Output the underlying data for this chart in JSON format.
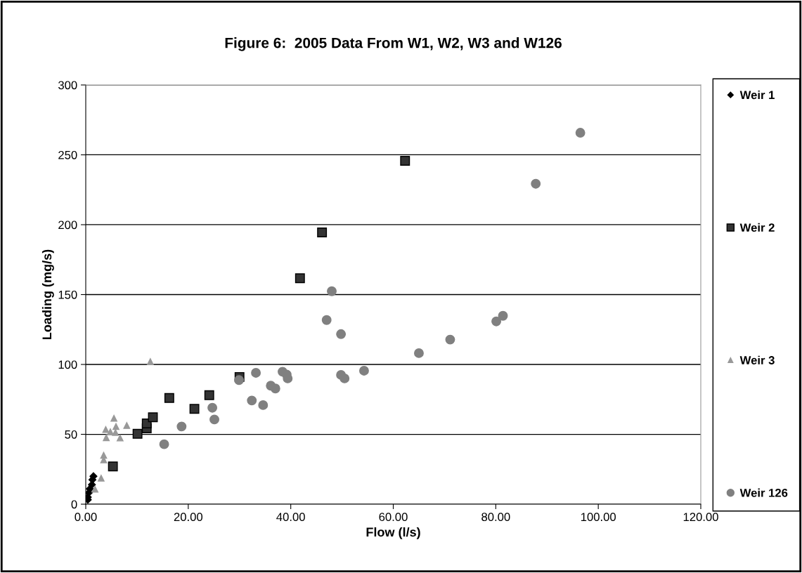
{
  "chart_data": {
    "type": "scatter",
    "title": "Figure 6:  2005 Data From W1, W2, W3 and W126",
    "xlabel": "Flow (l/s)",
    "ylabel": "Loading (mg/s)",
    "xlim": [
      0,
      120
    ],
    "ylim": [
      0,
      300
    ],
    "xticks": [
      {
        "value": 0,
        "label": "0.00"
      },
      {
        "value": 20,
        "label": "20.00"
      },
      {
        "value": 40,
        "label": "40.00"
      },
      {
        "value": 60,
        "label": "60.00"
      },
      {
        "value": 80,
        "label": "80.00"
      },
      {
        "value": 100,
        "label": "100.00"
      },
      {
        "value": 120,
        "label": "120.00"
      }
    ],
    "yticks": [
      0,
      50,
      100,
      150,
      200,
      250,
      300
    ],
    "grid": "y",
    "legend": "right",
    "series": [
      {
        "name": "Weir 1",
        "color": "#000000",
        "marker": "diamond",
        "x": [
          0.4,
          0.4,
          0.6,
          0.8,
          1.2,
          1.3,
          1.5
        ],
        "values": [
          3.2,
          5,
          8.2,
          11,
          14,
          17.5,
          20
        ]
      },
      {
        "name": "Weir 2",
        "color": "#333333",
        "marker": "square",
        "x": [
          5.3,
          10.1,
          11.9,
          11.9,
          13.1,
          16.3,
          21.2,
          24.1,
          30.0,
          41.8,
          46.1,
          62.3
        ],
        "values": [
          27,
          50.4,
          54.3,
          57.8,
          62.2,
          76,
          68.2,
          78,
          91,
          161.7,
          194.5,
          245.7
        ]
      },
      {
        "name": "Weir 3",
        "color": "#999999",
        "marker": "triangle",
        "x": [
          1.8,
          3.0,
          3.5,
          3.5,
          4.0,
          6.7,
          5.8,
          4.8,
          3.9,
          5.9,
          8.0,
          5.5,
          12.6
        ],
        "values": [
          10.7,
          18.6,
          31.7,
          35,
          47.6,
          47.4,
          51.3,
          51.8,
          53.4,
          55.6,
          56.3,
          61.5,
          102
        ]
      },
      {
        "name": "Weir 126",
        "color": "#808080",
        "marker": "circle",
        "x": [
          15.3,
          18.7,
          24.7,
          25.1,
          29.9,
          32.4,
          33.2,
          34.6,
          36.1,
          37.0,
          38.4,
          39.2,
          39.4,
          47.0,
          48.0,
          49.8,
          49.8,
          50.5,
          54.3,
          65.0,
          71.1,
          80.1,
          81.4,
          87.8,
          96.5
        ],
        "values": [
          42.9,
          55.6,
          69,
          60.6,
          88.8,
          74.2,
          94,
          70.9,
          84.8,
          82.8,
          94.8,
          92.8,
          90,
          131.8,
          152.4,
          121.7,
          92.5,
          90,
          95.5,
          108.1,
          117.8,
          130.8,
          134.8,
          229.3,
          265.8
        ]
      }
    ]
  }
}
